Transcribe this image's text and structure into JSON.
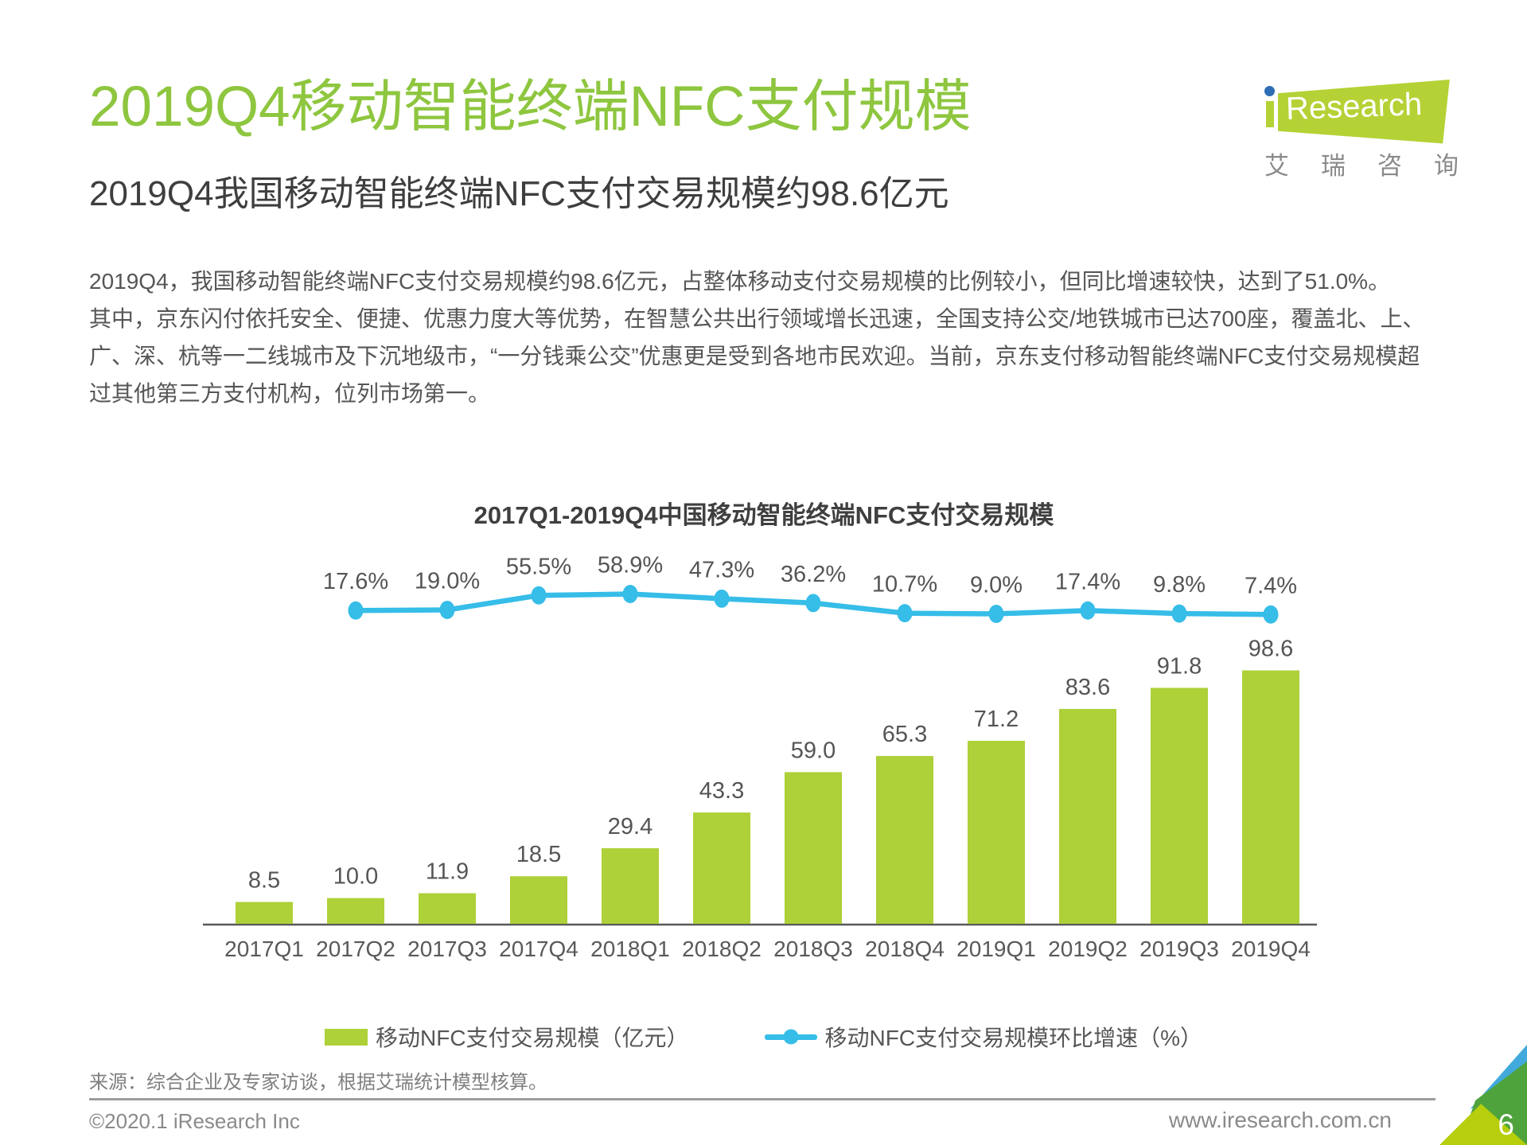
{
  "page": {
    "title": "2019Q4移动智能终端NFC支付规模",
    "subtitle": "2019Q4我国移动智能终端NFC支付交易规模约98.6亿元",
    "paragraphs": [
      "2019Q4，我国移动智能终端NFC支付交易规模约98.6亿元，占整体移动支付交易规模的比例较小，但同比增速较快，达到了51.0%。",
      "其中，京东闪付依托安全、便捷、优惠力度大等优势，在智慧公共出行领域增长迅速，全国支持公交/地铁城市已达700座，覆盖北、上、广、深、杭等一二线城市及下沉地级市，“一分钱乘公交”优惠更是受到各地市民欢迎。当前，京东支付移动智能终端NFC支付交易规模超过其他第三方支付机构，位列市场第一。"
    ],
    "source": "来源：综合企业及专家访谈，根据艾瑞统计模型核算。",
    "footer": {
      "copyright": "©2020.1 iResearch Inc",
      "website": "www.iresearch.com.cn",
      "page_number": "6"
    },
    "logo": {
      "brand_i": "i",
      "brand_text": "Research",
      "cn_text": "艾瑞咨询"
    }
  },
  "colors": {
    "title_green": "#8ec63f",
    "bar_green": "#aed038",
    "line_cyan": "#36bde8",
    "text_dark": "#3e3e3e",
    "text_body": "#565656",
    "text_gray": "#8a8a8a",
    "corner_blue": "#41a9dc",
    "corner_green": "#4fa33c",
    "corner_yellow": "#b7ce0c"
  },
  "chart_data": {
    "type": "bar+line",
    "title": "2017Q1-2019Q4中国移动智能终端NFC支付交易规模",
    "categories": [
      "2017Q1",
      "2017Q2",
      "2017Q3",
      "2017Q4",
      "2018Q1",
      "2018Q2",
      "2018Q3",
      "2018Q4",
      "2019Q1",
      "2019Q2",
      "2019Q3",
      "2019Q4"
    ],
    "series": [
      {
        "name": "移动NFC支付交易规模（亿元）",
        "type": "bar",
        "color": "#aed038",
        "values": [
          8.5,
          10.0,
          11.9,
          18.5,
          29.4,
          43.3,
          59.0,
          65.3,
          71.2,
          83.6,
          91.8,
          98.6
        ]
      },
      {
        "name": "移动NFC支付交易规模环比增速（%）",
        "type": "line",
        "color": "#36bde8",
        "start_category_index": 1,
        "values": [
          17.6,
          19.0,
          55.5,
          58.9,
          47.3,
          36.2,
          10.7,
          9.0,
          17.4,
          9.8,
          7.4
        ]
      }
    ],
    "value_labels": "shown",
    "legend_position": "bottom",
    "grid": "off"
  }
}
